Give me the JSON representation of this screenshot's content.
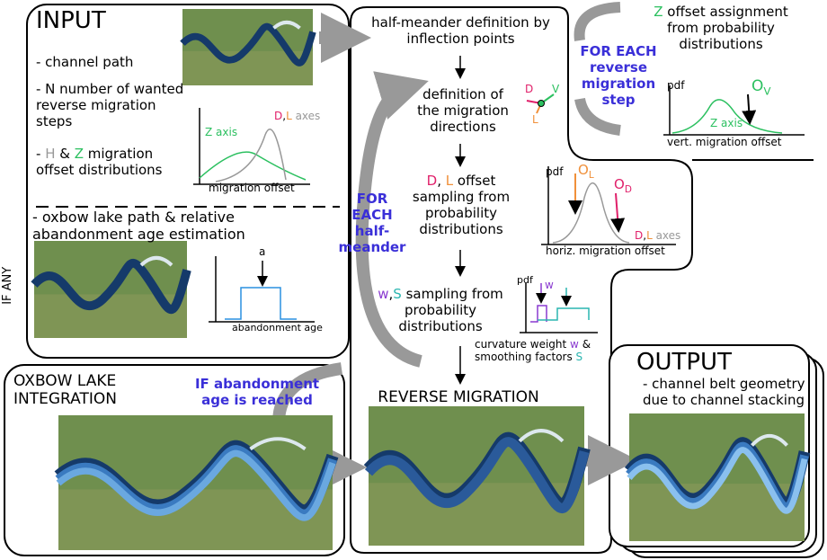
{
  "input": {
    "title": "INPUT",
    "items": [
      [
        "- channel path"
      ],
      [
        "- N number of wanted reverse migration steps"
      ],
      [
        "- ",
        "H",
        " & ",
        "Z",
        " migration offset distributions"
      ]
    ],
    "chart": {
      "z_label": "Z axis",
      "dl_label": [
        "D",
        ",",
        "L",
        " axes"
      ],
      "x_label": "migration offset"
    },
    "oxbow_item": "- oxbow lake path & relative abandonment age estimation",
    "age_chart": {
      "marker": "a",
      "x_label": "abandonment age"
    },
    "side_label": "IF ANY"
  },
  "oxbow": {
    "title": "OXBOW LAKE INTEGRATION",
    "condition": "IF abandonment age is reached"
  },
  "loop": {
    "half_meander": "half-meander definition by inflection points",
    "directions": "definition of the migration directions",
    "vectors": [
      "D",
      "V",
      "L"
    ],
    "dl_sampling": [
      "D",
      ", ",
      "L",
      " offset sampling from probability distributions"
    ],
    "dl_chart": {
      "pdf": "pdf",
      "ol": [
        "O",
        "L"
      ],
      "od": [
        "O",
        "D"
      ],
      "axes": [
        "D",
        ",",
        "L",
        " axes"
      ],
      "x_label": "horiz. migration offset"
    },
    "ws_sampling": [
      "w",
      ",",
      "S",
      " sampling from probability distributions"
    ],
    "ws_chart": {
      "pdf": "pdf",
      "w": "w"
    },
    "ws_caption": [
      "curvature weight ",
      "w",
      " & smoothing factors ",
      "S"
    ],
    "for_each": "FOR EACH half-meander",
    "result": "REVERSE MIGRATION"
  },
  "step": {
    "z_offset": [
      "Z",
      " offset assignment from probability distributions"
    ],
    "for_each": "FOR EACH reverse migration step",
    "chart": {
      "pdf": "pdf",
      "ov": [
        "O",
        "V"
      ],
      "z_label": "Z axis",
      "x_label": "vert. migration offset"
    }
  },
  "output": {
    "title": "OUTPUT",
    "text": "- channel belt geometry due to channel stacking"
  }
}
